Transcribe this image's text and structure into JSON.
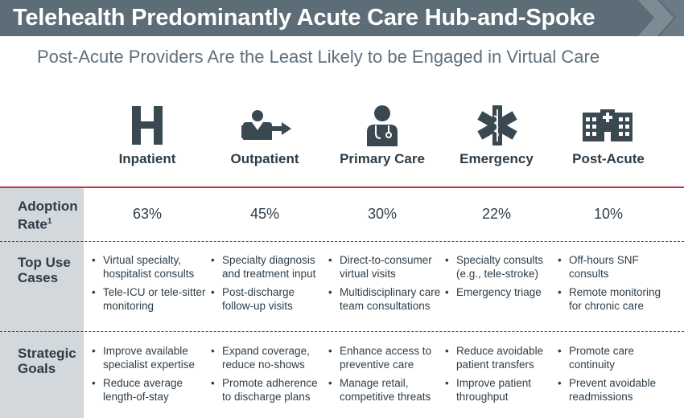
{
  "title": "Telehealth Predominantly Acute Care Hub-and-Spoke",
  "subtitle": "Post-Acute Providers Are the Least Likely to be Engaged in Virtual Care",
  "row_labels": {
    "adoption": "Adoption Rate",
    "adoption_sup": "1",
    "use_cases": "Top Use Cases",
    "goals": "Strategic Goals"
  },
  "columns": [
    {
      "icon": "hospital-h-icon",
      "name": "Inpatient",
      "rate": "63%",
      "use_cases": [
        "Virtual specialty, hospitalist consults",
        "Tele-ICU or tele-sitter monitoring"
      ],
      "goals": [
        "Improve available specialist expertise",
        "Reduce average length-of-stay"
      ]
    },
    {
      "icon": "patient-arrow-icon",
      "name": "Outpatient",
      "rate": "45%",
      "use_cases": [
        "Specialty diagnosis and treatment input",
        "Post-discharge follow-up visits"
      ],
      "goals": [
        "Expand coverage, reduce no-shows",
        "Promote adherence to discharge plans"
      ]
    },
    {
      "icon": "doctor-stethoscope-icon",
      "name": "Primary Care",
      "rate": "30%",
      "use_cases": [
        "Direct-to-consumer virtual visits",
        "Multidisciplinary care team consultations"
      ],
      "goals": [
        "Enhance access to preventive care",
        "Manage retail, competitive threats"
      ]
    },
    {
      "icon": "star-of-life-icon",
      "name": "Emergency",
      "rate": "22%",
      "use_cases": [
        "Specialty consults (e.g., tele-stroke)",
        "Emergency triage"
      ],
      "goals": [
        "Reduce avoidable patient transfers",
        "Improve patient throughput"
      ]
    },
    {
      "icon": "care-facility-icon",
      "name": "Post-Acute",
      "rate": "10%",
      "use_cases": [
        "Off-hours SNF consults",
        "Remote monitoring for chronic care"
      ],
      "goals": [
        "Promote care continuity",
        "Prevent avoidable readmissions"
      ]
    }
  ],
  "colors": {
    "title_bar": "#5d6d78",
    "accent_rule": "#c4323d",
    "sidebar": "#d3d8dc",
    "text": "#2e3d48",
    "icon": "#3a4852"
  }
}
